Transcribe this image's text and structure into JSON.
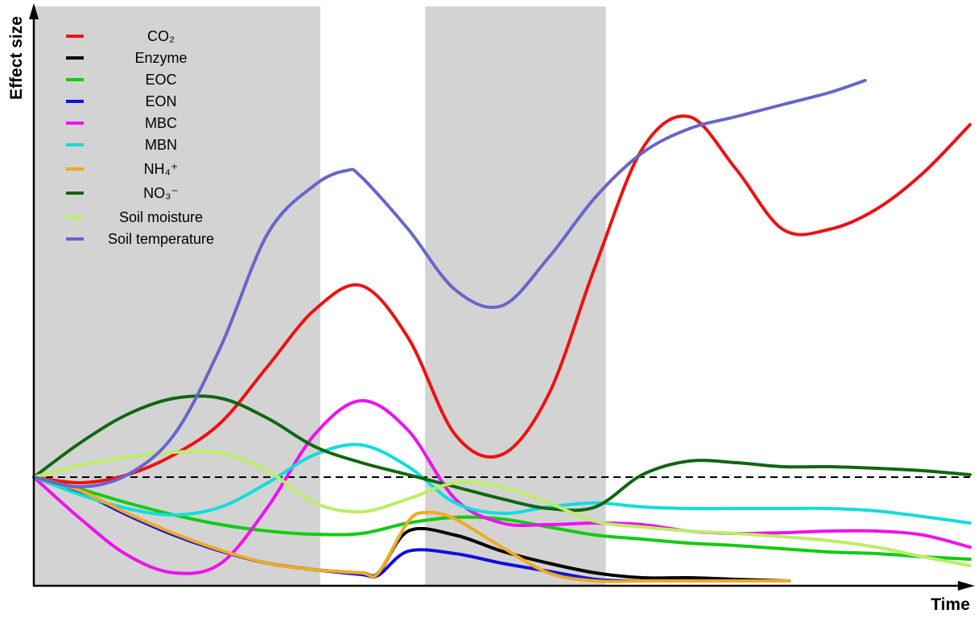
{
  "chart_data": {
    "type": "line",
    "title": "",
    "xlabel": "Time",
    "ylabel": "Effect size",
    "xlim": [
      0,
      100
    ],
    "ylim": [
      -1.35,
      5.85
    ],
    "grid": false,
    "legend_position": "top-left",
    "reference_line": {
      "y": 0,
      "style": "dashed",
      "color": "#000000"
    },
    "shaded_regions": [
      {
        "x": [
          0,
          30.6
        ],
        "color": "#d3d3d3"
      },
      {
        "x": [
          41.8,
          61.1
        ],
        "color": "#d3d3d3"
      }
    ],
    "series": [
      {
        "name": "CO₂",
        "color": "#ee1111",
        "x": [
          0,
          5,
          10,
          15,
          20,
          25,
          30,
          35,
          40,
          45,
          50,
          55,
          60,
          65,
          70,
          75,
          80,
          85,
          90,
          95,
          100
        ],
        "y": [
          0,
          -0.07,
          0.03,
          0.28,
          0.68,
          1.38,
          2.08,
          2.38,
          1.73,
          0.53,
          0.28,
          1.03,
          2.63,
          4.08,
          4.48,
          3.83,
          3.08,
          3.08,
          3.33,
          3.78,
          4.38
        ]
      },
      {
        "name": "Enzyme",
        "color": "#000000",
        "x": [
          0,
          5,
          10,
          15,
          20,
          25,
          30,
          35,
          36.8,
          40,
          45,
          50,
          55,
          60,
          65,
          70,
          75,
          80.7
        ],
        "y": [
          0,
          -0.19,
          -0.47,
          -0.72,
          -0.92,
          -1.07,
          -1.15,
          -1.19,
          -1.19,
          -0.67,
          -0.72,
          -0.92,
          -1.07,
          -1.19,
          -1.25,
          -1.25,
          -1.27,
          -1.29
        ]
      },
      {
        "name": "EOC",
        "color": "#11cc11",
        "x": [
          0,
          5,
          10,
          15,
          20,
          25,
          30,
          35,
          40,
          45,
          50,
          55,
          60,
          65,
          70,
          75,
          80,
          85,
          90,
          95,
          100
        ],
        "y": [
          0,
          -0.15,
          -0.32,
          -0.47,
          -0.59,
          -0.67,
          -0.71,
          -0.7,
          -0.57,
          -0.5,
          -0.52,
          -0.62,
          -0.72,
          -0.77,
          -0.82,
          -0.85,
          -0.89,
          -0.93,
          -0.95,
          -0.99,
          -1.02
        ]
      },
      {
        "name": "EON",
        "color": "#1111dd",
        "x": [
          0,
          5,
          10,
          15,
          20,
          25,
          30,
          35,
          36.8,
          40,
          45,
          50,
          55,
          60,
          64.3
        ],
        "y": [
          0,
          -0.19,
          -0.47,
          -0.72,
          -0.92,
          -1.07,
          -1.15,
          -1.21,
          -1.22,
          -0.92,
          -0.95,
          -1.07,
          -1.17,
          -1.27,
          -1.29
        ]
      },
      {
        "name": "MBC",
        "color": "#ee11ee",
        "x": [
          0,
          5,
          10,
          15,
          20,
          25,
          30,
          35,
          40,
          45,
          50,
          55,
          60,
          65,
          70,
          75,
          80,
          85,
          90,
          95,
          100
        ],
        "y": [
          0,
          -0.52,
          -0.97,
          -1.19,
          -1.07,
          -0.37,
          0.53,
          0.95,
          0.58,
          -0.27,
          -0.57,
          -0.59,
          -0.57,
          -0.59,
          -0.67,
          -0.7,
          -0.69,
          -0.67,
          -0.67,
          -0.72,
          -0.87
        ]
      },
      {
        "name": "MBN",
        "color": "#11dddd",
        "x": [
          0,
          5,
          10,
          15,
          20,
          25,
          30,
          35,
          40,
          45,
          50,
          55,
          60,
          65,
          70,
          75,
          80,
          85,
          90,
          95,
          100
        ],
        "y": [
          0,
          -0.22,
          -0.39,
          -0.47,
          -0.37,
          -0.07,
          0.28,
          0.4,
          0.13,
          -0.32,
          -0.45,
          -0.37,
          -0.32,
          -0.37,
          -0.39,
          -0.39,
          -0.39,
          -0.39,
          -0.42,
          -0.49,
          -0.57
        ]
      },
      {
        "name": "NH₄⁺",
        "color": "#f0aa22",
        "x": [
          0,
          5,
          10,
          15,
          20,
          25,
          30,
          35,
          36.8,
          40,
          42,
          45,
          50,
          55,
          60,
          65,
          70,
          75,
          80.7
        ],
        "y": [
          0,
          -0.17,
          -0.45,
          -0.7,
          -0.91,
          -1.07,
          -1.15,
          -1.19,
          -1.19,
          -0.55,
          -0.44,
          -0.52,
          -0.87,
          -1.19,
          -1.29,
          -1.29,
          -1.29,
          -1.29,
          -1.29
        ]
      },
      {
        "name": "NO₃⁻",
        "color": "#116611",
        "x": [
          0,
          5,
          10,
          15,
          20,
          25,
          30,
          35,
          40,
          45,
          50,
          55,
          60,
          65,
          70,
          75,
          80,
          85,
          90,
          95,
          100
        ],
        "y": [
          0,
          0.43,
          0.78,
          0.98,
          0.98,
          0.73,
          0.38,
          0.18,
          0.03,
          -0.12,
          -0.27,
          -0.39,
          -0.37,
          0.03,
          0.2,
          0.18,
          0.13,
          0.13,
          0.11,
          0.08,
          0.03
        ]
      },
      {
        "name": "Soil moisture",
        "color": "#bbee66",
        "x": [
          0,
          5,
          10,
          15,
          20,
          25,
          30,
          35,
          40,
          45,
          50,
          55,
          60,
          65,
          70,
          75,
          80,
          85,
          90,
          95,
          100
        ],
        "y": [
          0,
          0.15,
          0.25,
          0.31,
          0.3,
          0.08,
          -0.32,
          -0.43,
          -0.27,
          -0.07,
          -0.12,
          -0.32,
          -0.55,
          -0.62,
          -0.67,
          -0.7,
          -0.74,
          -0.79,
          -0.87,
          -0.99,
          -1.1
        ]
      },
      {
        "name": "Soil temperature",
        "color": "#6666cc",
        "x": [
          0,
          5,
          10,
          15,
          20,
          25,
          30,
          33.4,
          35,
          40,
          45,
          50,
          55,
          60,
          65,
          70,
          75,
          80,
          85,
          88.8
        ],
        "y": [
          0,
          -0.12,
          0.03,
          0.53,
          1.63,
          3.03,
          3.63,
          3.81,
          3.73,
          3.08,
          2.33,
          2.13,
          2.73,
          3.48,
          4.03,
          4.33,
          4.48,
          4.63,
          4.78,
          4.93
        ]
      }
    ]
  }
}
